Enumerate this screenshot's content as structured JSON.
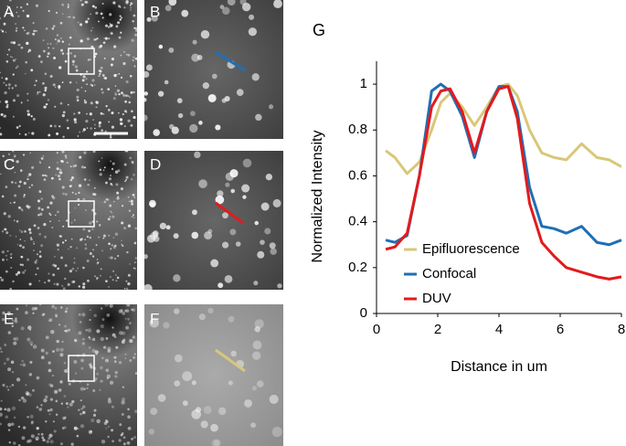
{
  "panels": [
    "A",
    "B",
    "C",
    "D",
    "E",
    "F"
  ],
  "chart_data": {
    "type": "line",
    "panel_label": "G",
    "x_label": "Distance in um",
    "y_label": "Normalized Intensity",
    "x": [
      0.3,
      0.6,
      1.0,
      1.4,
      1.8,
      2.1,
      2.4,
      2.8,
      3.2,
      3.6,
      4.0,
      4.3,
      4.6,
      5.0,
      5.4,
      5.8,
      6.2,
      6.7,
      7.2,
      7.6,
      8.0
    ],
    "series": [
      {
        "name": "Epifluorescence",
        "color": "#d9c77a",
        "values": [
          0.71,
          0.68,
          0.61,
          0.66,
          0.8,
          0.92,
          0.96,
          0.9,
          0.82,
          0.9,
          0.99,
          1.0,
          0.95,
          0.8,
          0.7,
          0.68,
          0.67,
          0.74,
          0.68,
          0.67,
          0.64
        ]
      },
      {
        "name": "Confocal",
        "color": "#1f6fb5",
        "values": [
          0.32,
          0.31,
          0.34,
          0.6,
          0.97,
          1.0,
          0.97,
          0.86,
          0.68,
          0.88,
          0.99,
          0.99,
          0.88,
          0.55,
          0.38,
          0.37,
          0.35,
          0.38,
          0.31,
          0.3,
          0.32
        ]
      },
      {
        "name": "DUV",
        "color": "#e31a1c",
        "values": [
          0.28,
          0.29,
          0.35,
          0.6,
          0.9,
          0.97,
          0.98,
          0.88,
          0.7,
          0.88,
          0.98,
          0.99,
          0.85,
          0.48,
          0.31,
          0.25,
          0.2,
          0.18,
          0.16,
          0.15,
          0.16
        ]
      }
    ],
    "xlim": [
      0,
      8
    ],
    "xticks": [
      0,
      2,
      4,
      6,
      8
    ],
    "ylim": [
      0,
      1.1
    ],
    "yticks": [
      0,
      0.2,
      0.4,
      0.6,
      0.8,
      1
    ],
    "legend": "lower left"
  }
}
